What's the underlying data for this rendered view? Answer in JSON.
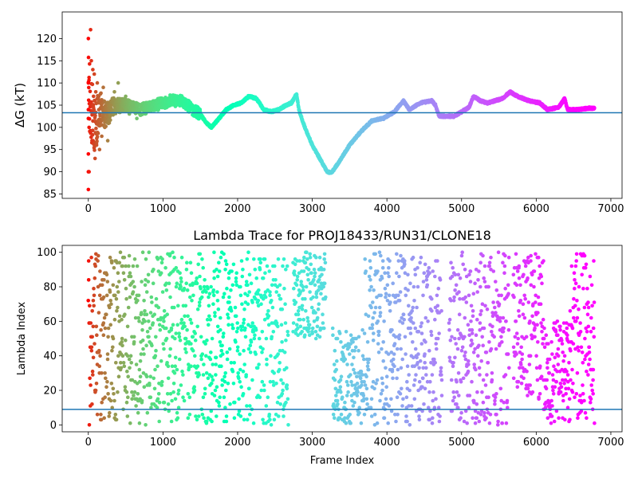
{
  "chart_data": [
    {
      "type": "scatter",
      "title": "",
      "xlabel": "",
      "ylabel": "ΔG (kT)",
      "xlim": [
        -350,
        7150
      ],
      "ylim": [
        84,
        126
      ],
      "xticks": [
        0,
        1000,
        2000,
        3000,
        4000,
        5000,
        6000,
        7000
      ],
      "yticks": [
        85,
        90,
        95,
        100,
        105,
        110,
        115,
        120
      ],
      "hline": 103.3,
      "colormap": "rainbow (red at early frames → violet at late frames)",
      "n_frames": 6800,
      "trace": [
        [
          0,
          110
        ],
        [
          40,
          104
        ],
        [
          80,
          100
        ],
        [
          150,
          104
        ],
        [
          250,
          103
        ],
        [
          350,
          105
        ],
        [
          500,
          105
        ],
        [
          700,
          104
        ],
        [
          900,
          105
        ],
        [
          1100,
          106
        ],
        [
          1250,
          106
        ],
        [
          1400,
          104
        ],
        [
          1500,
          103
        ],
        [
          1580,
          101
        ],
        [
          1650,
          100
        ],
        [
          1750,
          102
        ],
        [
          1850,
          104
        ],
        [
          1950,
          105
        ],
        [
          2050,
          105.5
        ],
        [
          2150,
          107
        ],
        [
          2250,
          106.5
        ],
        [
          2350,
          104
        ],
        [
          2450,
          103.5
        ],
        [
          2550,
          104
        ],
        [
          2650,
          105
        ],
        [
          2720,
          105.5
        ],
        [
          2790,
          107.5
        ],
        [
          2820,
          104
        ],
        [
          2900,
          100
        ],
        [
          3000,
          96
        ],
        [
          3100,
          93
        ],
        [
          3200,
          90
        ],
        [
          3260,
          89.8
        ],
        [
          3350,
          92
        ],
        [
          3500,
          96
        ],
        [
          3650,
          99
        ],
        [
          3800,
          101.5
        ],
        [
          3950,
          102
        ],
        [
          4100,
          103.5
        ],
        [
          4220,
          106
        ],
        [
          4300,
          104
        ],
        [
          4450,
          105.5
        ],
        [
          4600,
          106
        ],
        [
          4650,
          105
        ],
        [
          4700,
          102.5
        ],
        [
          4800,
          102.5
        ],
        [
          4900,
          102.5
        ],
        [
          5000,
          103.5
        ],
        [
          5100,
          104.5
        ],
        [
          5160,
          107
        ],
        [
          5250,
          106
        ],
        [
          5350,
          105.5
        ],
        [
          5450,
          106
        ],
        [
          5550,
          106.5
        ],
        [
          5650,
          108
        ],
        [
          5750,
          107
        ],
        [
          5900,
          106
        ],
        [
          6050,
          105.5
        ],
        [
          6150,
          104
        ],
        [
          6300,
          104.5
        ],
        [
          6380,
          106.5
        ],
        [
          6420,
          104
        ],
        [
          6550,
          104
        ],
        [
          6700,
          104.3
        ],
        [
          6780,
          104.3
        ]
      ],
      "early_points": [
        [
          0,
          86
        ],
        [
          0,
          90
        ],
        [
          0,
          94
        ],
        [
          0,
          102
        ],
        [
          0,
          104
        ],
        [
          0,
          110
        ],
        [
          0,
          120
        ],
        [
          10,
          90
        ],
        [
          10,
          100
        ],
        [
          30,
          122
        ],
        [
          40,
          115
        ],
        [
          50,
          97
        ],
        [
          60,
          113
        ],
        [
          70,
          107
        ],
        [
          80,
          112
        ],
        [
          90,
          93
        ],
        [
          100,
          108
        ],
        [
          110,
          96
        ],
        [
          120,
          110
        ],
        [
          130,
          101
        ],
        [
          140,
          104
        ],
        [
          150,
          95
        ],
        [
          170,
          106
        ],
        [
          180,
          98
        ],
        [
          200,
          109
        ],
        [
          220,
          100
        ],
        [
          240,
          103
        ],
        [
          260,
          97
        ],
        [
          280,
          101
        ],
        [
          300,
          105
        ],
        [
          350,
          108
        ],
        [
          400,
          110
        ],
        [
          450,
          104
        ],
        [
          500,
          107
        ],
        [
          550,
          103
        ],
        [
          600,
          105
        ],
        [
          650,
          102
        ],
        [
          700,
          104
        ]
      ]
    },
    {
      "type": "scatter",
      "title": "Lambda Trace for PROJ18433/RUN31/CLONE18",
      "xlabel": "Frame Index",
      "ylabel": "Lambda Index",
      "xlim": [
        -350,
        7150
      ],
      "ylim": [
        -4,
        104
      ],
      "xticks": [
        0,
        1000,
        2000,
        3000,
        4000,
        5000,
        6000,
        7000
      ],
      "yticks": [
        0,
        20,
        40,
        60,
        80,
        100
      ],
      "hline": 9,
      "colormap": "rainbow (red at early frames → violet at late frames)",
      "n_frames": 6800,
      "gaps": [
        [
          2680,
          2740
        ],
        [
          3180,
          3270
        ],
        [
          4740,
          4830
        ],
        [
          5640,
          5690
        ]
      ],
      "segments": [
        {
          "x": [
            2740,
            3180
          ],
          "y": [
            50,
            100
          ]
        },
        {
          "x": [
            3280,
            3700
          ],
          "y": [
            0,
            55
          ]
        },
        {
          "x": [
            3700,
            4350
          ],
          "y": [
            0,
            100
          ]
        },
        {
          "x": [
            4350,
            4740
          ],
          "y": [
            0,
            100
          ]
        },
        {
          "x": [
            4830,
            5640
          ],
          "y": [
            0,
            100
          ]
        },
        {
          "x": [
            5690,
            6100
          ],
          "y": [
            15,
            100
          ]
        },
        {
          "x": [
            6100,
            6450
          ],
          "y": [
            0,
            60
          ]
        },
        {
          "x": [
            6450,
            6780
          ],
          "y": [
            0,
            100
          ]
        }
      ]
    }
  ]
}
